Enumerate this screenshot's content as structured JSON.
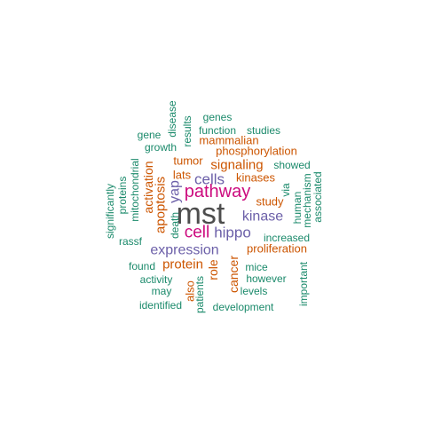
{
  "palette": {
    "gray": "#4d4d4d",
    "magenta": "#cc0a7e",
    "purple": "#6b5fa8",
    "orange": "#cc5500",
    "green": "#1b8a6b"
  },
  "words": [
    {
      "text": "mst",
      "color": "gray"
    },
    {
      "text": "pathway",
      "color": "magenta"
    },
    {
      "text": "cell",
      "color": "magenta"
    },
    {
      "text": "cells",
      "color": "purple"
    },
    {
      "text": "hippo",
      "color": "purple"
    },
    {
      "text": "kinase",
      "color": "purple"
    },
    {
      "text": "expression",
      "color": "purple"
    },
    {
      "text": "yap",
      "color": "purple"
    },
    {
      "text": "signaling",
      "color": "orange"
    },
    {
      "text": "apoptosis",
      "color": "orange"
    },
    {
      "text": "protein",
      "color": "orange"
    },
    {
      "text": "activation",
      "color": "orange"
    },
    {
      "text": "phosphorylation",
      "color": "orange"
    },
    {
      "text": "mammalian",
      "color": "orange"
    },
    {
      "text": "tumor",
      "color": "orange"
    },
    {
      "text": "lats",
      "color": "orange"
    },
    {
      "text": "kinases",
      "color": "orange"
    },
    {
      "text": "study",
      "color": "orange"
    },
    {
      "text": "proliferation",
      "color": "orange"
    },
    {
      "text": "cancer",
      "color": "orange"
    },
    {
      "text": "role",
      "color": "orange"
    },
    {
      "text": "also",
      "color": "orange"
    },
    {
      "text": "genes",
      "color": "green"
    },
    {
      "text": "function",
      "color": "green"
    },
    {
      "text": "studies",
      "color": "green"
    },
    {
      "text": "gene",
      "color": "green"
    },
    {
      "text": "growth",
      "color": "green"
    },
    {
      "text": "disease",
      "color": "green"
    },
    {
      "text": "results",
      "color": "green"
    },
    {
      "text": "showed",
      "color": "green"
    },
    {
      "text": "mitochondrial",
      "color": "green"
    },
    {
      "text": "proteins",
      "color": "green"
    },
    {
      "text": "significantly",
      "color": "green"
    },
    {
      "text": "rassf",
      "color": "green"
    },
    {
      "text": "death",
      "color": "green"
    },
    {
      "text": "via",
      "color": "green"
    },
    {
      "text": "human",
      "color": "green"
    },
    {
      "text": "mechanism",
      "color": "green"
    },
    {
      "text": "associated",
      "color": "green"
    },
    {
      "text": "increased",
      "color": "green"
    },
    {
      "text": "found",
      "color": "green"
    },
    {
      "text": "mice",
      "color": "green"
    },
    {
      "text": "activity",
      "color": "green"
    },
    {
      "text": "however",
      "color": "green"
    },
    {
      "text": "may",
      "color": "green"
    },
    {
      "text": "levels",
      "color": "green"
    },
    {
      "text": "important",
      "color": "green"
    },
    {
      "text": "identified",
      "color": "green"
    },
    {
      "text": "patients",
      "color": "green"
    },
    {
      "text": "development",
      "color": "green"
    }
  ]
}
